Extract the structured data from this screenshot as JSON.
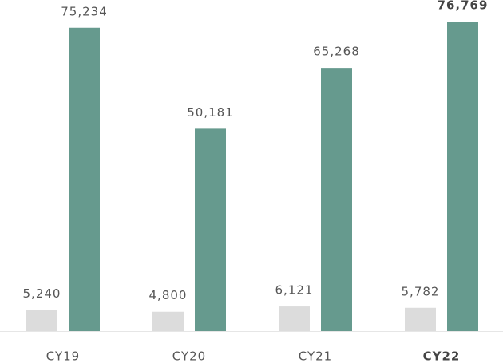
{
  "chart_data": {
    "type": "bar",
    "categories": [
      "CY19",
      "CY20",
      "CY21",
      "CY22"
    ],
    "series": [
      {
        "color": "#dcdcdc",
        "values": [
          5240,
          4800,
          6121,
          5782
        ],
        "value_labels": [
          "5,240",
          "4,800",
          "6,121",
          "5,782"
        ]
      },
      {
        "color": "#669a8e",
        "values": [
          75234,
          50181,
          65268,
          76769
        ],
        "value_labels": [
          "75,234",
          "50,181",
          "65,268",
          "76,769"
        ]
      }
    ]
  }
}
